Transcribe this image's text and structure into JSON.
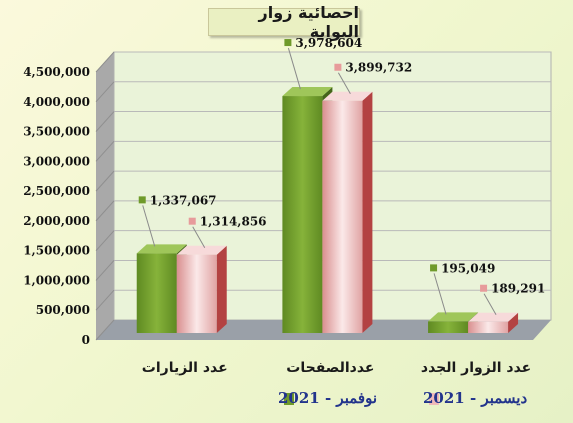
{
  "chart_data": {
    "type": "bar",
    "title": "احصائية زوار البوابة",
    "categories": [
      "عدد الزيارات",
      "عددالصفحات",
      "عدد الزوار الجدد"
    ],
    "series": [
      {
        "name": "نوفمبر - 2021",
        "values": [
          1337067,
          3978604,
          195049
        ],
        "labels": [
          "1,337,067",
          "3,978,604",
          "195,049"
        ],
        "color": "#6f9a2a"
      },
      {
        "name": "ديسمبر - 2021",
        "values": [
          1314856,
          3899732,
          189291
        ],
        "labels": [
          "1,314,856",
          "3,899,732",
          "189,291"
        ],
        "color": "#f2c6c6"
      }
    ],
    "ylim": [
      0,
      4500000
    ],
    "yticks": [
      0,
      500000,
      1000000,
      1500000,
      2000000,
      2500000,
      3000000,
      3500000,
      4000000,
      4500000
    ],
    "ytick_labels": [
      "0",
      "500,000",
      "1,000,000",
      "1,500,000",
      "2,000,000",
      "2,500,000",
      "3,000,000",
      "3,500,000",
      "4,000,000",
      "4,500,000"
    ],
    "grid": true,
    "legend_position": "bottom",
    "style": "3d-column"
  }
}
